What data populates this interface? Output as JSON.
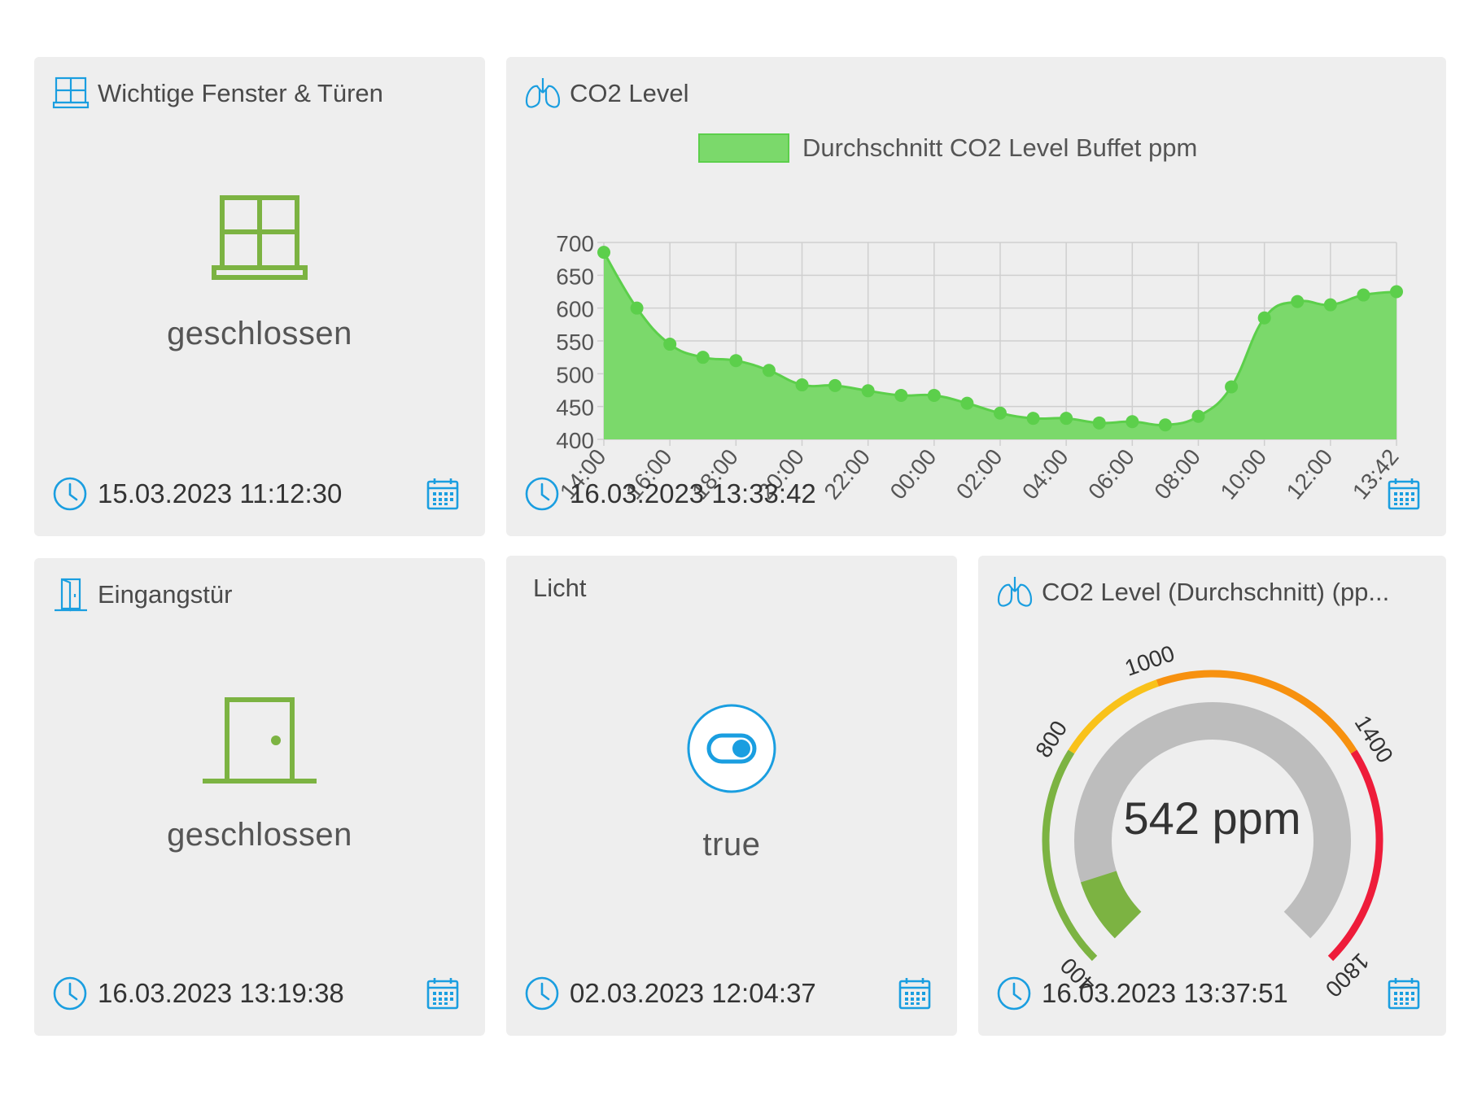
{
  "windows_card": {
    "title": "Wichtige Fenster & Türen",
    "state": "geschlossen",
    "timestamp": "15.03.2023 11:12:30",
    "icon": "window-icon"
  },
  "co2_chart_card": {
    "title": "CO2 Level",
    "legend": "Durchschnitt CO2 Level Buffet ppm",
    "timestamp": "16.03.2023 13:33:42",
    "icon": "lungs-icon"
  },
  "door_card": {
    "title": "Eingangstür",
    "state": "geschlossen",
    "timestamp": "16.03.2023 13:19:38",
    "icon": "door-icon"
  },
  "light_card": {
    "title": "Licht",
    "state": "true",
    "timestamp": "02.03.2023 12:04:37",
    "icon": "toggle-icon"
  },
  "gauge_card": {
    "title": "CO2 Level (Durchschnitt) (pp...",
    "value": 542,
    "value_text": "542 ppm",
    "timestamp": "16.03.2023 13:37:51",
    "min": 400,
    "max": 1800,
    "tick_labels": [
      "400",
      "800",
      "1000",
      "1400",
      "1800"
    ],
    "bands": [
      {
        "from": 400,
        "to": 800,
        "color": "#7cb342"
      },
      {
        "from": 800,
        "to": 1000,
        "color": "#f9c21a"
      },
      {
        "from": 1000,
        "to": 1400,
        "color": "#f7910f"
      },
      {
        "from": 1400,
        "to": 1800,
        "color": "#ee1c3a"
      }
    ]
  },
  "colors": {
    "accent_blue": "#1a9ee0",
    "accent_green": "#7cb342",
    "chart_fill": "#7bd96b",
    "chart_line": "#5ccf4b"
  },
  "chart_data": {
    "type": "area",
    "title": "",
    "xlabel": "",
    "ylabel": "",
    "ylim": [
      400,
      700
    ],
    "yticks": [
      400,
      450,
      500,
      550,
      600,
      650,
      700
    ],
    "x_tick_labels": [
      "14:00",
      "16:00",
      "18:00",
      "20:00",
      "22:00",
      "00:00",
      "02:00",
      "04:00",
      "06:00",
      "08:00",
      "10:00",
      "12:00",
      "13:42"
    ],
    "grid": true,
    "legend_position": "top-center",
    "series": [
      {
        "name": "Durchschnitt CO2 Level Buffet ppm",
        "x": [
          "14:00",
          "15:00",
          "16:00",
          "17:00",
          "18:00",
          "19:00",
          "20:00",
          "21:00",
          "22:00",
          "23:00",
          "00:00",
          "01:00",
          "02:00",
          "03:00",
          "04:00",
          "05:00",
          "06:00",
          "07:00",
          "08:00",
          "09:00",
          "10:00",
          "11:00",
          "12:00",
          "13:00",
          "13:42"
        ],
        "values": [
          685,
          600,
          545,
          525,
          520,
          505,
          483,
          482,
          474,
          467,
          467,
          455,
          440,
          432,
          432,
          425,
          427,
          422,
          435,
          480,
          585,
          610,
          605,
          620,
          625
        ]
      }
    ]
  }
}
